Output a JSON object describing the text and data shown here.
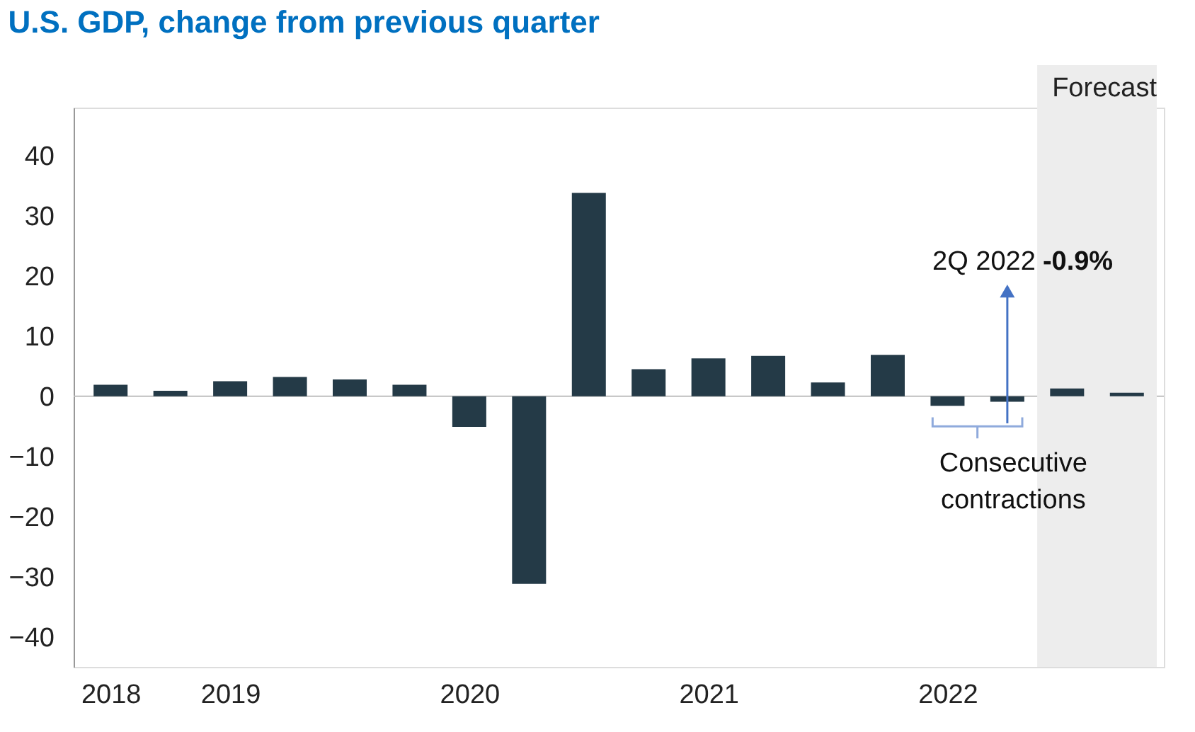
{
  "chart_data": {
    "type": "bar",
    "title": "U.S. GDP, change from previous quarter",
    "categories": [
      "2018",
      null,
      "2019",
      null,
      null,
      null,
      "2020",
      null,
      null,
      null,
      "2021",
      null,
      null,
      null,
      "2022",
      null,
      null,
      null
    ],
    "values": [
      1.9,
      0.9,
      2.5,
      3.2,
      2.8,
      1.9,
      -5.1,
      -31.2,
      33.8,
      4.5,
      6.3,
      6.7,
      2.3,
      6.9,
      -1.6,
      -0.9,
      1.3,
      0.6
    ],
    "color": "#243a47",
    "ylim": [
      -45,
      48
    ],
    "yticks": [
      -40,
      -30,
      -20,
      -10,
      0,
      10,
      20,
      30,
      40
    ],
    "grid": false,
    "ref_lines": [
      {
        "axis": "y",
        "value": 0,
        "color": "#bfbfbf"
      }
    ],
    "annotations": [
      "Forecast",
      "2Q 2022",
      "-0.9%",
      "Consecutive contractions"
    ]
  }
}
